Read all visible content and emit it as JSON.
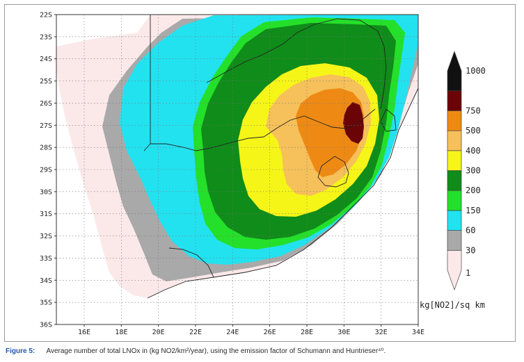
{
  "map": {
    "lat_labels": [
      "22S",
      "23S",
      "24S",
      "25S",
      "26S",
      "27S",
      "28S",
      "29S",
      "30S",
      "31S",
      "32S",
      "33S",
      "34S",
      "35S",
      "36S"
    ],
    "lon_labels": [
      "16E",
      "18E",
      "20E",
      "22E",
      "24E",
      "26E",
      "28E",
      "30E",
      "32E",
      "34E"
    ],
    "legend": {
      "units": "kg[NO2]/sq km",
      "bins": [
        {
          "label": "1",
          "color": "#fbe9ea"
        },
        {
          "label": "30",
          "color": "#a9a9a9"
        },
        {
          "label": "60",
          "color": "#22e2f0"
        },
        {
          "label": "150",
          "color": "#24e02a"
        },
        {
          "label": "200",
          "color": "#0f8c19"
        },
        {
          "label": "300",
          "color": "#f6f518"
        },
        {
          "label": "400",
          "color": "#f6c05a"
        },
        {
          "label": "500",
          "color": "#ee8a13"
        },
        {
          "label": "750",
          "color": "#6a0406"
        },
        {
          "label": "1000",
          "color": "#111111"
        }
      ]
    },
    "colors": {
      "ocean": "#ffffff",
      "frame": "#333333",
      "border": "#222222"
    }
  },
  "caption": {
    "figure_label": "Figure  5:",
    "text": "Average number of total LNOx in (kg NO2/km²/year), using the emission factor of Schumann and Huntrieser⁴⁰."
  }
}
